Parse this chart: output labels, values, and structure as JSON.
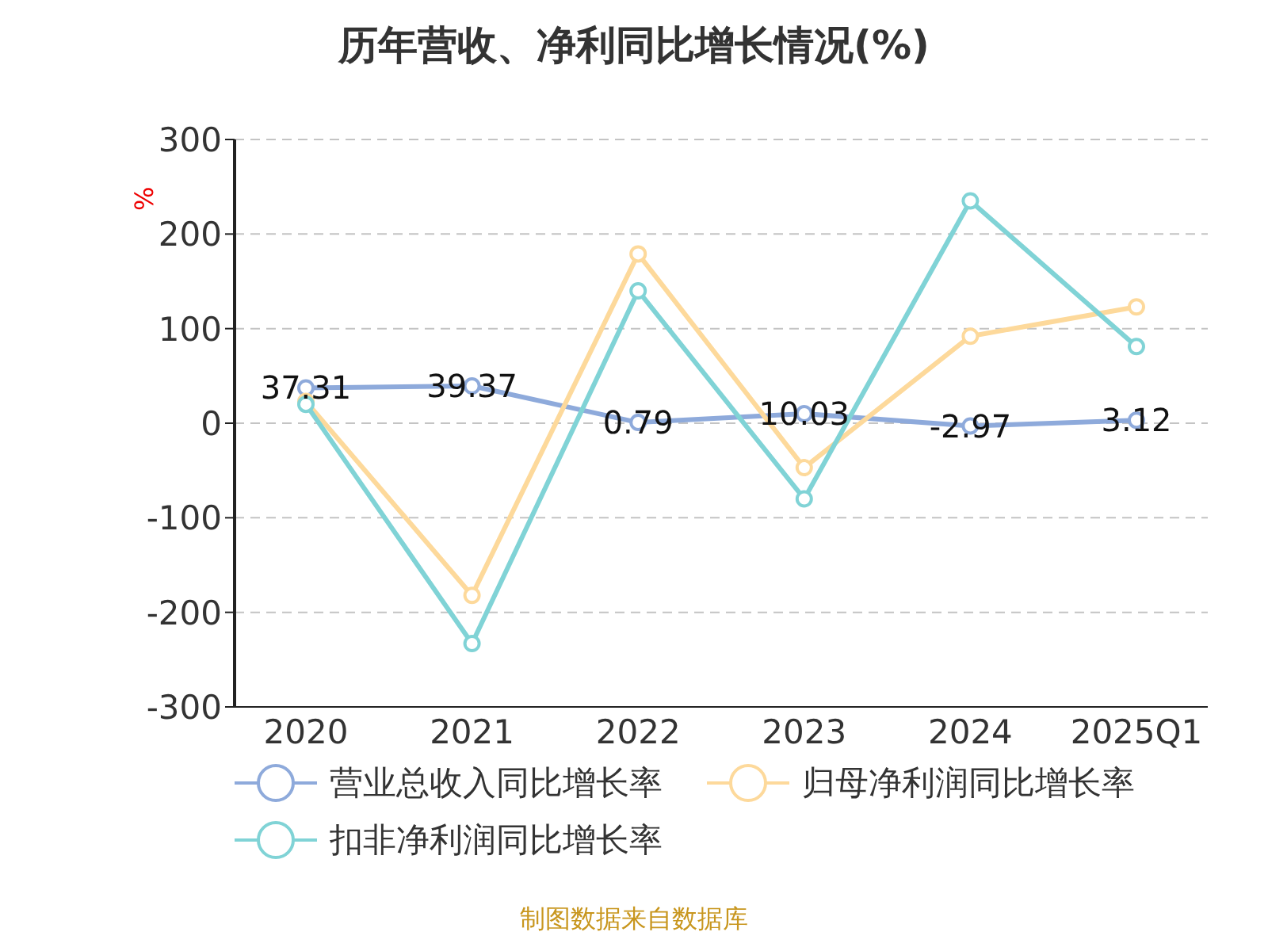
{
  "chart_data": {
    "type": "line",
    "title": "历年营收、净利同比增长情况(%)",
    "ylabel": "%",
    "categories": [
      "2020",
      "2021",
      "2022",
      "2023",
      "2024",
      "2025Q1"
    ],
    "series": [
      {
        "name": "营业总收入同比增长率",
        "color": "#8eaadb",
        "values": [
          37.31,
          39.37,
          0.79,
          10.03,
          -2.97,
          3.12
        ],
        "value_labels": [
          "37.31",
          "39.37",
          "0.79",
          "10.03",
          "-2.97",
          "3.12"
        ]
      },
      {
        "name": "归母净利润同比增长率",
        "color": "#fdd99b",
        "values": [
          23,
          -182,
          179,
          -47,
          92,
          123
        ]
      },
      {
        "name": "扣非净利润同比增长率",
        "color": "#80d3d6",
        "values": [
          20,
          -233,
          140,
          -80,
          235,
          81
        ]
      }
    ],
    "ylim": [
      -300,
      300
    ],
    "yticks": [
      -300,
      -200,
      -100,
      0,
      100,
      200,
      300
    ],
    "grid": "y",
    "legend": "bottom",
    "marker": "circle",
    "line_style": "solid",
    "annotations": [
      "制图数据来自数据库"
    ]
  }
}
